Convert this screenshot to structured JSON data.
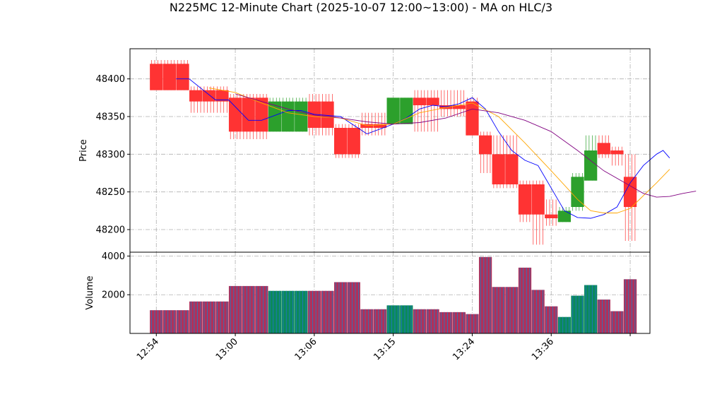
{
  "colors": {
    "up": "#2ca02c",
    "down": "#ff3333",
    "ma_fast": "#0000ff",
    "ma_mid": "#ffa500",
    "ma_slow": "#800080",
    "vol_up_a": "#0a8a5a",
    "vol_up_b": "#1f77b4",
    "vol_down_a": "#b0305a",
    "vol_down_b": "#3a6fb0"
  },
  "chart_data": {
    "type": "bar",
    "title": "N225MC 12-Minute Chart (2025-10-07 12:00~13:00) - MA on HLC/3",
    "price_axis": {
      "ylabel": "Price",
      "ylim": [
        48170,
        48440
      ],
      "ticks": [
        48200,
        48250,
        48300,
        48350,
        48400
      ]
    },
    "volume_axis": {
      "ylabel": "Volume",
      "ylim": [
        0,
        4200
      ],
      "ticks": [
        2000,
        4000
      ]
    },
    "x_axis": {
      "labels": [
        "12:54",
        "13:00",
        "13:06",
        "13:15",
        "13:24",
        "13:36"
      ],
      "label_positions": [
        0,
        6,
        12,
        18,
        24,
        30
      ],
      "last_index": 36,
      "xlim": [
        -2,
        37.5
      ]
    },
    "candles": [
      {
        "o": 48420,
        "h": 48425,
        "l": 48385,
        "c": 48385,
        "v": 1200
      },
      {
        "o": 48420,
        "h": 48425,
        "l": 48385,
        "c": 48385,
        "v": 1200
      },
      {
        "o": 48420,
        "h": 48425,
        "l": 48385,
        "c": 48385,
        "v": 1200
      },
      {
        "o": 48385,
        "h": 48390,
        "l": 48355,
        "c": 48370,
        "v": 1650
      },
      {
        "o": 48385,
        "h": 48390,
        "l": 48355,
        "c": 48370,
        "v": 1650
      },
      {
        "o": 48385,
        "h": 48390,
        "l": 48355,
        "c": 48370,
        "v": 1650
      },
      {
        "o": 48375,
        "h": 48380,
        "l": 48320,
        "c": 48330,
        "v": 2450
      },
      {
        "o": 48375,
        "h": 48380,
        "l": 48320,
        "c": 48330,
        "v": 2450
      },
      {
        "o": 48375,
        "h": 48380,
        "l": 48320,
        "c": 48330,
        "v": 2450
      },
      {
        "o": 48330,
        "h": 48375,
        "l": 48330,
        "c": 48370,
        "v": 2200
      },
      {
        "o": 48330,
        "h": 48375,
        "l": 48330,
        "c": 48370,
        "v": 2200
      },
      {
        "o": 48330,
        "h": 48375,
        "l": 48330,
        "c": 48370,
        "v": 2200
      },
      {
        "o": 48370,
        "h": 48380,
        "l": 48325,
        "c": 48335,
        "v": 2200
      },
      {
        "o": 48370,
        "h": 48380,
        "l": 48325,
        "c": 48335,
        "v": 2200
      },
      {
        "o": 48335,
        "h": 48340,
        "l": 48295,
        "c": 48300,
        "v": 2650
      },
      {
        "o": 48335,
        "h": 48340,
        "l": 48295,
        "c": 48300,
        "v": 2650
      },
      {
        "o": 48340,
        "h": 48355,
        "l": 48325,
        "c": 48335,
        "v": 1250
      },
      {
        "o": 48340,
        "h": 48355,
        "l": 48325,
        "c": 48335,
        "v": 1250
      },
      {
        "o": 48340,
        "h": 48375,
        "l": 48340,
        "c": 48375,
        "v": 1450
      },
      {
        "o": 48340,
        "h": 48375,
        "l": 48340,
        "c": 48375,
        "v": 1450
      },
      {
        "o": 48375,
        "h": 48385,
        "l": 48330,
        "c": 48365,
        "v": 1250
      },
      {
        "o": 48375,
        "h": 48385,
        "l": 48330,
        "c": 48365,
        "v": 1250
      },
      {
        "o": 48365,
        "h": 48385,
        "l": 48350,
        "c": 48360,
        "v": 1100
      },
      {
        "o": 48365,
        "h": 48385,
        "l": 48350,
        "c": 48360,
        "v": 1100
      },
      {
        "o": 48370,
        "h": 48375,
        "l": 48325,
        "c": 48325,
        "v": 1000
      },
      {
        "o": 48325,
        "h": 48330,
        "l": 48275,
        "c": 48300,
        "v": 3950
      },
      {
        "o": 48300,
        "h": 48325,
        "l": 48255,
        "c": 48260,
        "v": 2400
      },
      {
        "o": 48300,
        "h": 48325,
        "l": 48255,
        "c": 48260,
        "v": 2400
      },
      {
        "o": 48260,
        "h": 48265,
        "l": 48210,
        "c": 48220,
        "v": 3400
      },
      {
        "o": 48260,
        "h": 48265,
        "l": 48180,
        "c": 48220,
        "v": 2250
      },
      {
        "o": 48220,
        "h": 48240,
        "l": 48205,
        "c": 48215,
        "v": 1400
      },
      {
        "o": 48210,
        "h": 48230,
        "l": 48210,
        "c": 48225,
        "v": 850
      },
      {
        "o": 48230,
        "h": 48275,
        "l": 48225,
        "c": 48270,
        "v": 1950
      },
      {
        "o": 48265,
        "h": 48325,
        "l": 48265,
        "c": 48305,
        "v": 2500
      },
      {
        "o": 48315,
        "h": 48325,
        "l": 48295,
        "c": 48300,
        "v": 1750
      },
      {
        "o": 48305,
        "h": 48310,
        "l": 48285,
        "c": 48300,
        "v": 1150
      },
      {
        "o": 48270,
        "h": 48300,
        "l": 48185,
        "c": 48230,
        "v": 2800
      }
    ],
    "moving_averages": [
      {
        "color": "ma_fast",
        "points": [
          [
            1.5,
            48400
          ],
          [
            2.5,
            48400
          ],
          [
            4.5,
            48372
          ],
          [
            5.5,
            48372
          ],
          [
            7,
            48345
          ],
          [
            8,
            48345
          ],
          [
            10,
            48358
          ],
          [
            11,
            48358
          ],
          [
            12,
            48353
          ],
          [
            14,
            48350
          ],
          [
            16,
            48327
          ],
          [
            18,
            48340
          ],
          [
            19,
            48348
          ],
          [
            20,
            48360
          ],
          [
            21,
            48365
          ],
          [
            22,
            48363
          ],
          [
            23,
            48367
          ],
          [
            24,
            48375
          ],
          [
            25,
            48360
          ],
          [
            26,
            48330
          ],
          [
            27,
            48305
          ],
          [
            28,
            48292
          ],
          [
            29,
            48285
          ],
          [
            30,
            48255
          ],
          [
            31,
            48225
          ],
          [
            32,
            48216
          ],
          [
            33,
            48215
          ],
          [
            34,
            48220
          ],
          [
            35,
            48230
          ],
          [
            36,
            48262
          ],
          [
            37,
            48285
          ],
          [
            38,
            48300
          ],
          [
            38.5,
            48305
          ],
          [
            39,
            48295
          ]
        ]
      },
      {
        "color": "ma_mid",
        "points": [
          [
            4,
            48388
          ],
          [
            6,
            48382
          ],
          [
            8,
            48368
          ],
          [
            10,
            48355
          ],
          [
            12,
            48350
          ],
          [
            14,
            48348
          ],
          [
            16,
            48338
          ],
          [
            18,
            48340
          ],
          [
            20,
            48355
          ],
          [
            22,
            48362
          ],
          [
            24,
            48368
          ],
          [
            26,
            48350
          ],
          [
            28,
            48315
          ],
          [
            30,
            48278
          ],
          [
            32,
            48240
          ],
          [
            33,
            48225
          ],
          [
            34,
            48222
          ],
          [
            35,
            48222
          ],
          [
            36,
            48228
          ],
          [
            37,
            48245
          ],
          [
            38,
            48262
          ],
          [
            39,
            48280
          ]
        ]
      },
      {
        "color": "ma_slow",
        "points": [
          [
            6,
            48380
          ],
          [
            8,
            48370
          ],
          [
            10,
            48360
          ],
          [
            12,
            48352
          ],
          [
            14,
            48348
          ],
          [
            16,
            48343
          ],
          [
            18,
            48340
          ],
          [
            20,
            48342
          ],
          [
            22,
            48348
          ],
          [
            24,
            48360
          ],
          [
            26,
            48355
          ],
          [
            28,
            48345
          ],
          [
            30,
            48330
          ],
          [
            32,
            48305
          ],
          [
            34,
            48278
          ],
          [
            36,
            48258
          ],
          [
            37,
            48248
          ],
          [
            38,
            48243
          ],
          [
            39,
            48244
          ],
          [
            40,
            48248
          ],
          [
            41,
            48251
          ]
        ]
      }
    ]
  }
}
